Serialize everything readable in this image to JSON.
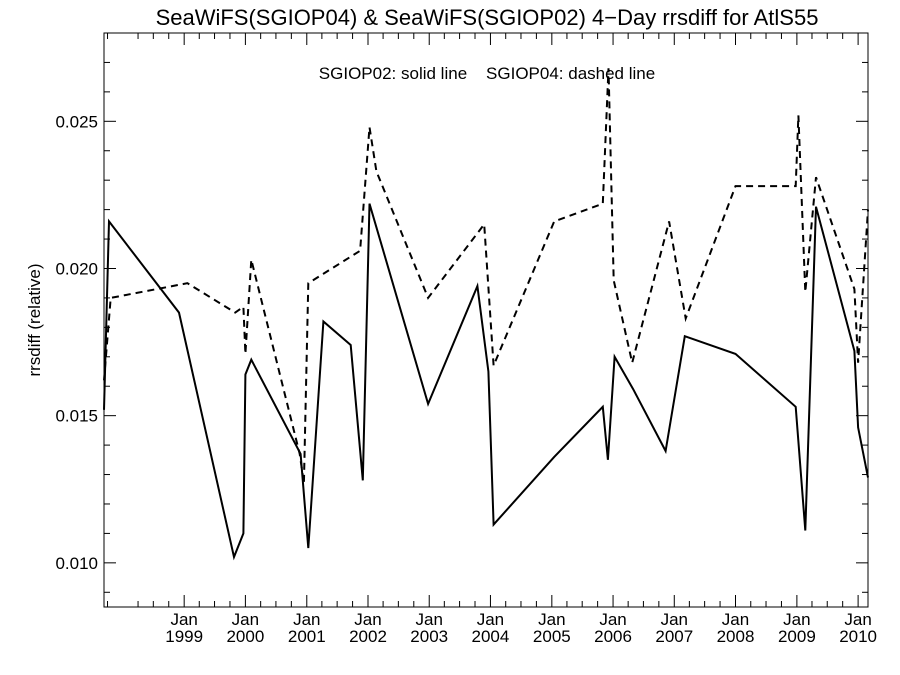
{
  "chart_data": {
    "type": "line",
    "title": "SeaWiFS(SGIOP04) & SeaWiFS(SGIOP02) 4−Day rrsdiff for AtlS55",
    "xlabel": "",
    "ylabel": "rrsdiff (relative)",
    "annotation": "SGIOP02: solid line    SGIOP04: dashed line",
    "xlim": [
      "1997-09-10",
      "2010-03-01"
    ],
    "ylim": [
      0.0085,
      0.028
    ],
    "grid": false,
    "legend": "none",
    "y_ticks": [
      {
        "value": 0.01,
        "label": "0.010"
      },
      {
        "value": 0.015,
        "label": "0.015"
      },
      {
        "value": 0.02,
        "label": "0.020"
      },
      {
        "value": 0.025,
        "label": "0.025"
      }
    ],
    "x_ticks": [
      {
        "date": "1999-01-01",
        "month": "Jan",
        "year": "1999"
      },
      {
        "date": "2000-01-01",
        "month": "Jan",
        "year": "2000"
      },
      {
        "date": "2001-01-01",
        "month": "Jan",
        "year": "2001"
      },
      {
        "date": "2002-01-01",
        "month": "Jan",
        "year": "2002"
      },
      {
        "date": "2003-01-01",
        "month": "Jan",
        "year": "2003"
      },
      {
        "date": "2004-01-01",
        "month": "Jan",
        "year": "2004"
      },
      {
        "date": "2005-01-01",
        "month": "Jan",
        "year": "2005"
      },
      {
        "date": "2006-01-01",
        "month": "Jan",
        "year": "2006"
      },
      {
        "date": "2007-01-01",
        "month": "Jan",
        "year": "2007"
      },
      {
        "date": "2008-01-01",
        "month": "Jan",
        "year": "2008"
      },
      {
        "date": "2009-01-01",
        "month": "Jan",
        "year": "2009"
      },
      {
        "date": "2010-01-01",
        "month": "Jan",
        "year": "2010"
      }
    ],
    "series": [
      {
        "name": "SGIOP02",
        "style": "solid",
        "color": "#000000",
        "points": [
          {
            "x": "1997-09-10",
            "y": 0.0152
          },
          {
            "x": "1997-10-10",
            "y": 0.0216
          },
          {
            "x": "1998-12-01",
            "y": 0.0185
          },
          {
            "x": "1999-10-25",
            "y": 0.0102
          },
          {
            "x": "1999-12-20",
            "y": 0.011
          },
          {
            "x": "2000-01-01",
            "y": 0.0164
          },
          {
            "x": "2000-02-05",
            "y": 0.0169
          },
          {
            "x": "2000-11-25",
            "y": 0.0137
          },
          {
            "x": "2001-01-10",
            "y": 0.0105
          },
          {
            "x": "2001-04-10",
            "y": 0.0182
          },
          {
            "x": "2001-09-20",
            "y": 0.0174
          },
          {
            "x": "2001-12-01",
            "y": 0.0128
          },
          {
            "x": "2002-01-10",
            "y": 0.0222
          },
          {
            "x": "2002-12-25",
            "y": 0.0154
          },
          {
            "x": "2003-10-15",
            "y": 0.0194
          },
          {
            "x": "2003-12-20",
            "y": 0.0165
          },
          {
            "x": "2004-01-20",
            "y": 0.0113
          },
          {
            "x": "2005-01-15",
            "y": 0.0136
          },
          {
            "x": "2005-11-01",
            "y": 0.0153
          },
          {
            "x": "2005-12-01",
            "y": 0.0135
          },
          {
            "x": "2006-01-10",
            "y": 0.017
          },
          {
            "x": "2006-05-01",
            "y": 0.0159
          },
          {
            "x": "2006-11-10",
            "y": 0.0138
          },
          {
            "x": "2007-03-05",
            "y": 0.0177
          },
          {
            "x": "2008-01-01",
            "y": 0.0171
          },
          {
            "x": "2008-12-25",
            "y": 0.0153
          },
          {
            "x": "2009-02-20",
            "y": 0.0111
          },
          {
            "x": "2009-04-25",
            "y": 0.0221
          },
          {
            "x": "2009-12-10",
            "y": 0.0172
          },
          {
            "x": "2010-01-01",
            "y": 0.0146
          },
          {
            "x": "2010-03-01",
            "y": 0.0129
          }
        ]
      },
      {
        "name": "SGIOP04",
        "style": "dashed",
        "color": "#000000",
        "points": [
          {
            "x": "1997-09-10",
            "y": 0.0162
          },
          {
            "x": "1997-10-20",
            "y": 0.019
          },
          {
            "x": "1999-01-20",
            "y": 0.0195
          },
          {
            "x": "1999-11-01",
            "y": 0.0185
          },
          {
            "x": "1999-12-20",
            "y": 0.0187
          },
          {
            "x": "2000-01-01",
            "y": 0.0171
          },
          {
            "x": "2000-02-05",
            "y": 0.0203
          },
          {
            "x": "2000-11-20",
            "y": 0.0137
          },
          {
            "x": "2000-12-15",
            "y": 0.0127
          },
          {
            "x": "2001-01-10",
            "y": 0.0195
          },
          {
            "x": "2001-11-15",
            "y": 0.0206
          },
          {
            "x": "2002-01-10",
            "y": 0.0248
          },
          {
            "x": "2002-02-20",
            "y": 0.0233
          },
          {
            "x": "2002-12-25",
            "y": 0.019
          },
          {
            "x": "2003-11-25",
            "y": 0.0215
          },
          {
            "x": "2004-01-20",
            "y": 0.0167
          },
          {
            "x": "2005-01-15",
            "y": 0.0216
          },
          {
            "x": "2005-11-01",
            "y": 0.0222
          },
          {
            "x": "2005-12-05",
            "y": 0.0268
          },
          {
            "x": "2006-01-05",
            "y": 0.0196
          },
          {
            "x": "2006-04-25",
            "y": 0.0168
          },
          {
            "x": "2006-12-01",
            "y": 0.0216
          },
          {
            "x": "2007-03-10",
            "y": 0.0183
          },
          {
            "x": "2008-01-01",
            "y": 0.0228
          },
          {
            "x": "2008-12-25",
            "y": 0.0228
          },
          {
            "x": "2009-01-10",
            "y": 0.0252
          },
          {
            "x": "2009-02-20",
            "y": 0.0192
          },
          {
            "x": "2009-04-25",
            "y": 0.0231
          },
          {
            "x": "2009-12-10",
            "y": 0.0193
          },
          {
            "x": "2010-01-01",
            "y": 0.0168
          },
          {
            "x": "2010-03-01",
            "y": 0.022
          }
        ]
      }
    ]
  }
}
